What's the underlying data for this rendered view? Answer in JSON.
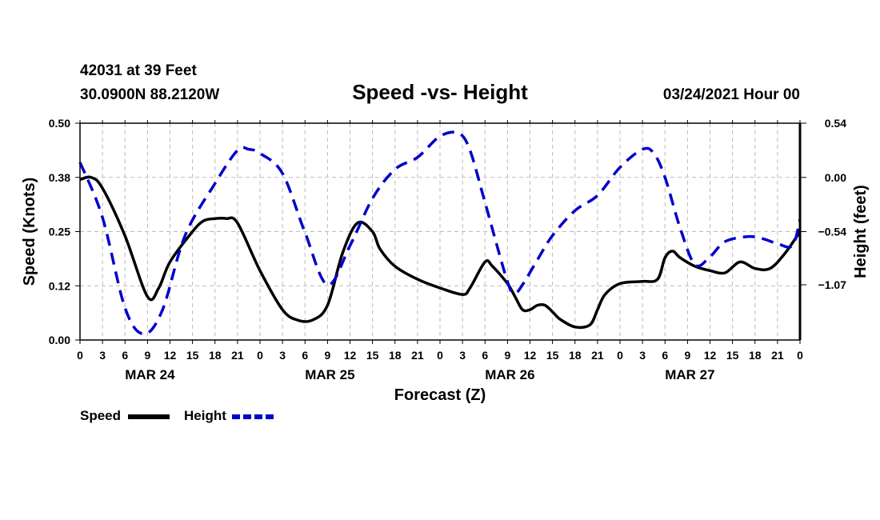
{
  "header": {
    "station": "42031 at 39 Feet",
    "location": "30.0900N 88.2120W",
    "title": "Speed -vs- Height",
    "datetime": "03/24/2021 Hour 00"
  },
  "chart_data": {
    "type": "line",
    "title": "Speed -vs- Height",
    "xlabel": "Forecast (Z)",
    "ylabel": "Speed (Knots)",
    "y2label": "Height (feet)",
    "x_ticks": [
      "0",
      "3",
      "6",
      "9",
      "12",
      "15",
      "18",
      "21",
      "0",
      "3",
      "6",
      "9",
      "12",
      "15",
      "18",
      "21",
      "0",
      "3",
      "6",
      "9",
      "12",
      "15",
      "18",
      "21",
      "0",
      "3",
      "6",
      "9",
      "12",
      "15",
      "18",
      "21",
      "0"
    ],
    "x_range_hours": [
      0,
      96
    ],
    "day_labels": [
      {
        "label": "MAR 24",
        "hour": 9
      },
      {
        "label": "MAR 25",
        "hour": 33
      },
      {
        "label": "MAR 26",
        "hour": 57
      },
      {
        "label": "MAR 27",
        "hour": 81
      }
    ],
    "y_left": {
      "range": [
        0,
        0.5
      ],
      "ticks": [
        "0.50",
        "0.38",
        "0.25",
        "0.12",
        "0.00"
      ],
      "tick_values": [
        0.5,
        0.375,
        0.25,
        0.125,
        0
      ]
    },
    "y_right": {
      "range": [
        -1.62,
        0.54
      ],
      "ticks": [
        "0.54",
        "0.00",
        "−0.54",
        "−1.07"
      ],
      "tick_values": [
        0.54,
        0,
        -0.54,
        -1.07
      ]
    },
    "grid": true,
    "legend": [
      {
        "label": "Speed",
        "color": "#000000",
        "style": "solid"
      },
      {
        "label": "Height",
        "color": "#0000cc",
        "style": "dashed"
      }
    ],
    "series": [
      {
        "name": "Speed",
        "axis": "left",
        "color": "#000000",
        "x": [
          0,
          1.5,
          3,
          6,
          9,
          10.5,
          12,
          15,
          16.5,
          18,
          19.5,
          21,
          24,
          27,
          29,
          31,
          33,
          35,
          37,
          39,
          40,
          42,
          45,
          48,
          51,
          52,
          54,
          55,
          57,
          58,
          59,
          60,
          61,
          62,
          63,
          64,
          66,
          68,
          69,
          70,
          72,
          75,
          77,
          78,
          79,
          80,
          82,
          84,
          86,
          88,
          90,
          92,
          94,
          96
        ],
        "values": [
          0.37,
          0.375,
          0.35,
          0.24,
          0.1,
          0.12,
          0.18,
          0.25,
          0.275,
          0.28,
          0.28,
          0.27,
          0.16,
          0.07,
          0.046,
          0.046,
          0.08,
          0.2,
          0.27,
          0.25,
          0.21,
          0.17,
          0.14,
          0.12,
          0.105,
          0.12,
          0.18,
          0.17,
          0.13,
          0.1,
          0.07,
          0.07,
          0.08,
          0.08,
          0.065,
          0.048,
          0.03,
          0.035,
          0.07,
          0.105,
          0.13,
          0.135,
          0.14,
          0.19,
          0.205,
          0.19,
          0.17,
          0.16,
          0.155,
          0.18,
          0.165,
          0.165,
          0.2,
          0.25
        ]
      },
      {
        "name": "Height",
        "axis": "right",
        "color": "#0000cc",
        "x": [
          0,
          3,
          6,
          8.5,
          11,
          14,
          18,
          21,
          22.5,
          24,
          27,
          30,
          33,
          36,
          39,
          42,
          45,
          48,
          50.5,
          52,
          54,
          57,
          58,
          59,
          61,
          63,
          66,
          69,
          72,
          75,
          76.5,
          78,
          80,
          82,
          84,
          86,
          89,
          91,
          93,
          95,
          96
        ],
        "values": [
          0.15,
          -0.4,
          -1.3,
          -1.56,
          -1.32,
          -0.58,
          -0.06,
          0.27,
          0.28,
          0.24,
          0.04,
          -0.55,
          -1.07,
          -0.68,
          -0.21,
          0.08,
          0.2,
          0.41,
          0.44,
          0.27,
          -0.25,
          -1.04,
          -1.15,
          -1.07,
          -0.82,
          -0.58,
          -0.33,
          -0.18,
          0.1,
          0.28,
          0.24,
          0.0,
          -0.5,
          -0.87,
          -0.79,
          -0.64,
          -0.59,
          -0.61,
          -0.66,
          -0.68,
          -0.42
        ]
      }
    ]
  }
}
